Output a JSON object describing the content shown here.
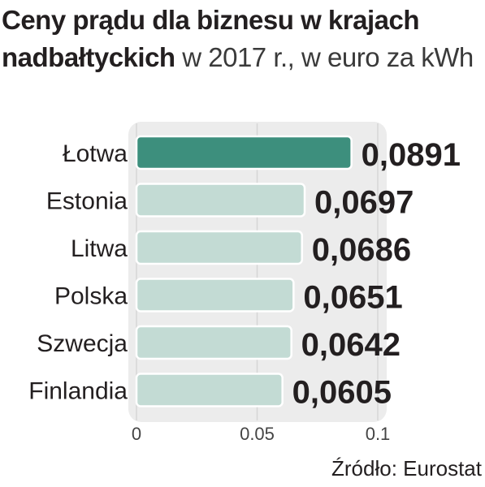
{
  "title": {
    "bold": "Ceny prądu dla biznesu w krajach nadbałtyckich",
    "rest": " w 2017 r., w euro za kWh"
  },
  "source": "Źródło: Eurostat",
  "colors": {
    "highlight": "#3d8f7d",
    "bar": "#c3dbd4",
    "panel": "#ececec",
    "text": "#231f20"
  },
  "chart_data": {
    "type": "bar",
    "orientation": "horizontal",
    "categories": [
      "Łotwa",
      "Estonia",
      "Litwa",
      "Polska",
      "Szwecja",
      "Finlandia"
    ],
    "values": [
      0.0891,
      0.0697,
      0.0686,
      0.0651,
      0.0642,
      0.0605
    ],
    "value_labels": [
      "0,0891",
      "0,0697",
      "0,0686",
      "0,0651",
      "0,0642",
      "0,0605"
    ],
    "highlight_index": 0,
    "xlim": [
      0,
      0.1
    ],
    "xticks": [
      0,
      0.05,
      0.1
    ],
    "xtick_labels": [
      "0",
      "0.05",
      "0.1"
    ],
    "grid": true
  }
}
